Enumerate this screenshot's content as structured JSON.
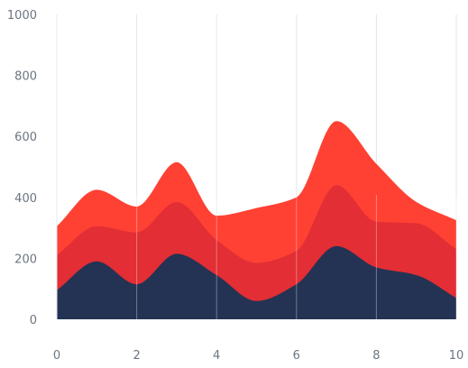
{
  "chart_data": {
    "type": "area",
    "stacked": true,
    "smooth": true,
    "x": [
      0,
      1,
      2,
      3,
      4,
      5,
      6,
      7,
      8,
      9,
      10
    ],
    "series": [
      {
        "values": [
          95,
          190,
          115,
          215,
          145,
          60,
          115,
          240,
          170,
          145,
          70
        ]
      },
      {
        "values": [
          115,
          115,
          170,
          170,
          115,
          125,
          110,
          200,
          150,
          170,
          160
        ]
      },
      {
        "values": [
          95,
          120,
          85,
          130,
          80,
          180,
          175,
          210,
          190,
          70,
          95
        ]
      }
    ],
    "colors": [
      "#243353",
      "#e22e34",
      "#ff4134"
    ],
    "xticks": [
      "0",
      "2",
      "4",
      "6",
      "8",
      "10"
    ],
    "yticks": [
      "0",
      "200",
      "400",
      "600",
      "800",
      "1000"
    ],
    "xlim": [
      0,
      10
    ],
    "ylim": [
      0,
      1000
    ],
    "grid": "vertical lines at labeled x ticks",
    "legend": "none",
    "title": "",
    "xlabel": "",
    "ylabel": ""
  }
}
